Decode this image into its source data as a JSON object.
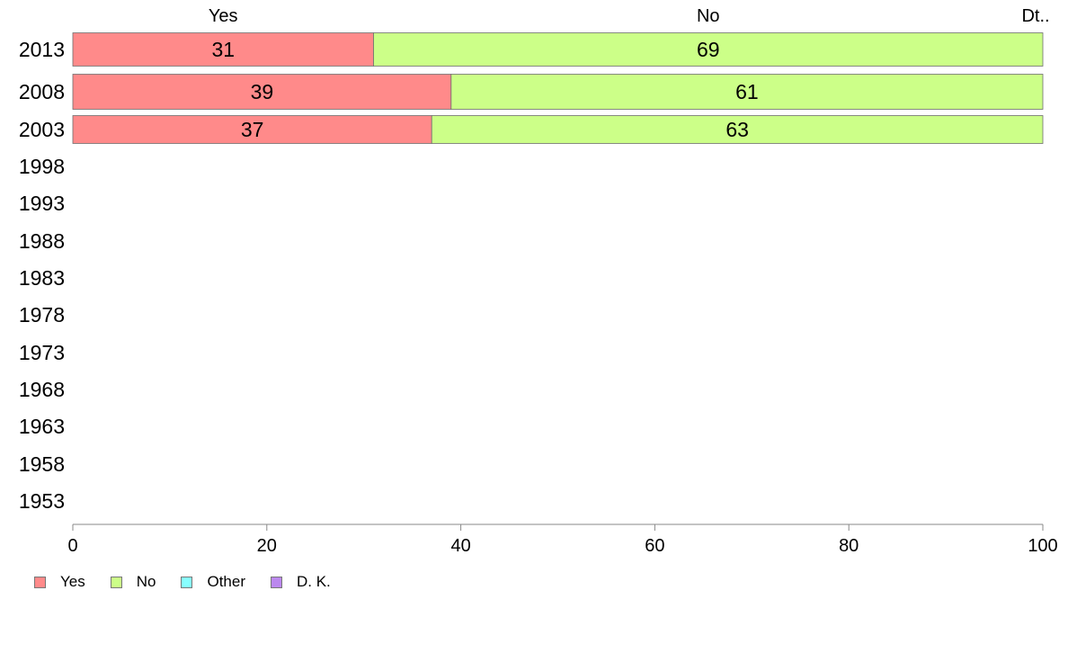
{
  "chart_data": {
    "type": "bar",
    "orientation": "horizontal",
    "stacked": true,
    "categories": [
      "2013",
      "2008",
      "2003",
      "1998",
      "1993",
      "1988",
      "1983",
      "1978",
      "1973",
      "1968",
      "1963",
      "1958",
      "1953"
    ],
    "series": [
      {
        "name": "Yes",
        "color": "#ff8a8a",
        "values": [
          31,
          39,
          37,
          null,
          null,
          null,
          null,
          null,
          null,
          null,
          null,
          null,
          null
        ]
      },
      {
        "name": "No",
        "color": "#ccff88",
        "values": [
          69,
          61,
          63,
          null,
          null,
          null,
          null,
          null,
          null,
          null,
          null,
          null,
          null
        ]
      },
      {
        "name": "Other",
        "color": "#88ffff",
        "values": [
          0,
          0,
          0,
          null,
          null,
          null,
          null,
          null,
          null,
          null,
          null,
          null,
          null
        ]
      },
      {
        "name": "D. K.",
        "color": "#bb88ee",
        "values": [
          0,
          0,
          0,
          null,
          null,
          null,
          null,
          null,
          null,
          null,
          null,
          null,
          null
        ]
      }
    ],
    "top_labels": [
      "Yes",
      "No",
      "Dt.."
    ],
    "xticks": [
      "0",
      "20",
      "40",
      "60",
      "80",
      "100"
    ],
    "xlim": [
      0,
      100
    ],
    "grid": false,
    "legend_position": "bottom-left"
  }
}
